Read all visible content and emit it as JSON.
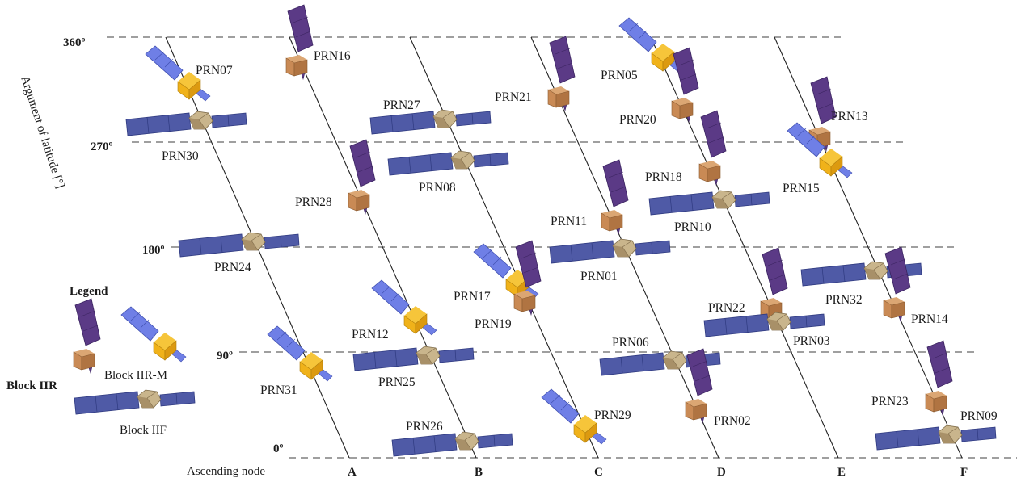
{
  "axis": {
    "y_title": "Argument of latitude [°]",
    "ticks": [
      "360º",
      "270º",
      "180º",
      "90º",
      "0º"
    ],
    "ascending_node": "Ascending node"
  },
  "planes": [
    "A",
    "B",
    "C",
    "D",
    "E",
    "F"
  ],
  "legend": {
    "title": "Legend",
    "block_iir": "Block IIR",
    "block_iirm": "Block IIR-M",
    "block_iif": "Block IIF"
  },
  "satellites": [
    {
      "prn": "PRN07",
      "block": "IIR-M"
    },
    {
      "prn": "PRN16",
      "block": "IIR"
    },
    {
      "prn": "PRN30",
      "block": "IIF"
    },
    {
      "prn": "PRN28",
      "block": "IIR"
    },
    {
      "prn": "PRN24",
      "block": "IIF"
    },
    {
      "prn": "PRN31",
      "block": "IIR-M"
    },
    {
      "prn": "PRN27",
      "block": "IIF"
    },
    {
      "prn": "PRN08",
      "block": "IIF"
    },
    {
      "prn": "PRN12",
      "block": "IIR-M"
    },
    {
      "prn": "PRN25",
      "block": "IIF"
    },
    {
      "prn": "PRN26",
      "block": "IIF"
    },
    {
      "prn": "PRN21",
      "block": "IIR"
    },
    {
      "prn": "PRN11",
      "block": "IIR"
    },
    {
      "prn": "PRN01",
      "block": "IIF"
    },
    {
      "prn": "PRN17",
      "block": "IIR-M"
    },
    {
      "prn": "PRN19",
      "block": "IIR"
    },
    {
      "prn": "PRN29",
      "block": "IIR-M"
    },
    {
      "prn": "PRN05",
      "block": "IIR-M"
    },
    {
      "prn": "PRN20",
      "block": "IIR"
    },
    {
      "prn": "PRN18",
      "block": "IIR"
    },
    {
      "prn": "PRN10",
      "block": "IIF"
    },
    {
      "prn": "PRN06",
      "block": "IIF"
    },
    {
      "prn": "PRN02",
      "block": "IIR"
    },
    {
      "prn": "PRN13",
      "block": "IIR"
    },
    {
      "prn": "PRN15",
      "block": "IIR-M"
    },
    {
      "prn": "PRN22",
      "block": "IIR"
    },
    {
      "prn": "PRN03",
      "block": "IIF"
    },
    {
      "prn": "PRN32",
      "block": "IIF"
    },
    {
      "prn": "PRN14",
      "block": "IIR"
    },
    {
      "prn": "PRN23",
      "block": "IIR"
    },
    {
      "prn": "PRN09",
      "block": "IIF"
    }
  ],
  "colors": {
    "iir_panel": "#5b3a86",
    "iir_body": "#c98a55",
    "iirm_panel": "#6f7fe6",
    "iirm_body": "#f0b21a",
    "iif_panel": "#4f5aa6",
    "iif_body": "#b8a27a"
  }
}
